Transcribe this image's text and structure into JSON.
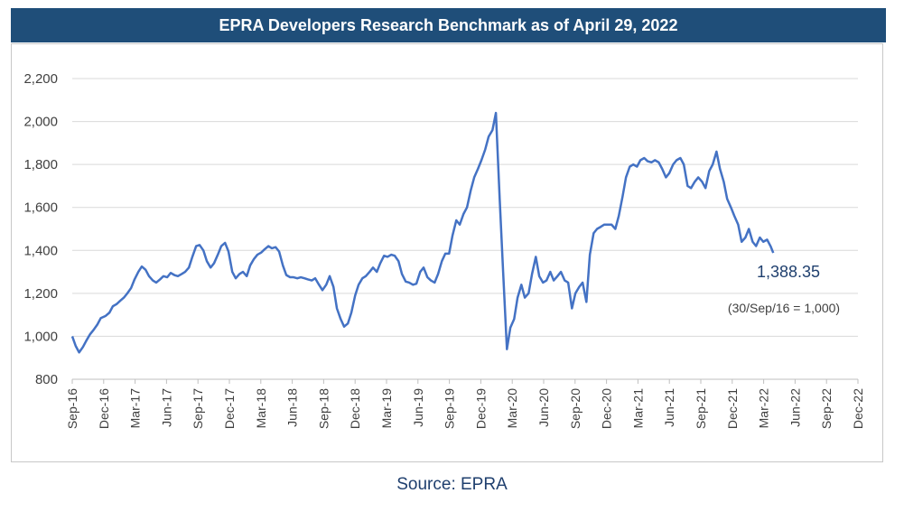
{
  "header": {
    "title": "EPRA Developers Research Benchmark as of April 29, 2022"
  },
  "footer": {
    "source": "Source: EPRA"
  },
  "colors": {
    "banner": "#1f4e79",
    "line": "#4472c4",
    "last_value_label": "#1f3f6e"
  },
  "chart_data": {
    "type": "line",
    "title": "EPRA Developers Research Benchmark as of April 29, 2022",
    "xlabel": "",
    "ylabel": "",
    "ylim": [
      800,
      2200
    ],
    "yticks": [
      800,
      1000,
      1200,
      1400,
      1600,
      1800,
      2000,
      2200
    ],
    "ytick_labels": [
      "800",
      "1,000",
      "1,200",
      "1,400",
      "1,600",
      "1,800",
      "2,000",
      "2,200"
    ],
    "xtick_labels": [
      "Sep-16",
      "Dec-16",
      "Mar-17",
      "Jun-17",
      "Sep-17",
      "Dec-17",
      "Mar-18",
      "Jun-18",
      "Sep-18",
      "Dec-18",
      "Mar-19",
      "Jun-19",
      "Sep-19",
      "Dec-19",
      "Mar-20",
      "Jun-20",
      "Sep-20",
      "Dec-20",
      "Mar-21",
      "Jun-21",
      "Sep-21",
      "Dec-21",
      "Mar-22",
      "Jun-22",
      "Sep-22",
      "Dec-22"
    ],
    "grid": {
      "horizontal": true,
      "vertical": false
    },
    "legend": "none",
    "annotations": {
      "last_value": "1,388.35",
      "base_note": "(30/Sep/16 = 1,000)"
    },
    "series": [
      {
        "values": [
          [
            "2016-09-30",
            1000
          ],
          [
            "2016-10-10",
            955
          ],
          [
            "2016-10-20",
            925
          ],
          [
            "2016-10-31",
            950
          ],
          [
            "2016-11-10",
            980
          ],
          [
            "2016-11-21",
            1010
          ],
          [
            "2016-12-01",
            1030
          ],
          [
            "2016-12-12",
            1055
          ],
          [
            "2016-12-22",
            1085
          ],
          [
            "2017-01-05",
            1095
          ],
          [
            "2017-01-16",
            1110
          ],
          [
            "2017-01-26",
            1140
          ],
          [
            "2017-02-06",
            1150
          ],
          [
            "2017-02-16",
            1165
          ],
          [
            "2017-02-27",
            1180
          ],
          [
            "2017-03-09",
            1200
          ],
          [
            "2017-03-20",
            1225
          ],
          [
            "2017-03-30",
            1265
          ],
          [
            "2017-04-10",
            1300
          ],
          [
            "2017-04-20",
            1325
          ],
          [
            "2017-05-01",
            1310
          ],
          [
            "2017-05-11",
            1280
          ],
          [
            "2017-05-22",
            1260
          ],
          [
            "2017-06-01",
            1250
          ],
          [
            "2017-06-12",
            1265
          ],
          [
            "2017-06-22",
            1280
          ],
          [
            "2017-07-03",
            1275
          ],
          [
            "2017-07-13",
            1295
          ],
          [
            "2017-07-24",
            1285
          ],
          [
            "2017-08-03",
            1280
          ],
          [
            "2017-08-14",
            1290
          ],
          [
            "2017-08-24",
            1300
          ],
          [
            "2017-09-04",
            1320
          ],
          [
            "2017-09-14",
            1370
          ],
          [
            "2017-09-25",
            1420
          ],
          [
            "2017-10-05",
            1425
          ],
          [
            "2017-10-16",
            1400
          ],
          [
            "2017-10-26",
            1350
          ],
          [
            "2017-11-06",
            1320
          ],
          [
            "2017-11-16",
            1340
          ],
          [
            "2017-11-27",
            1380
          ],
          [
            "2017-12-07",
            1420
          ],
          [
            "2017-12-18",
            1435
          ],
          [
            "2017-12-28",
            1395
          ],
          [
            "2018-01-08",
            1300
          ],
          [
            "2018-01-18",
            1270
          ],
          [
            "2018-01-29",
            1290
          ],
          [
            "2018-02-08",
            1300
          ],
          [
            "2018-02-19",
            1280
          ],
          [
            "2018-03-01",
            1330
          ],
          [
            "2018-03-12",
            1360
          ],
          [
            "2018-03-22",
            1380
          ],
          [
            "2018-04-02",
            1390
          ],
          [
            "2018-04-12",
            1405
          ],
          [
            "2018-04-23",
            1420
          ],
          [
            "2018-05-03",
            1410
          ],
          [
            "2018-05-14",
            1415
          ],
          [
            "2018-05-24",
            1395
          ],
          [
            "2018-06-04",
            1330
          ],
          [
            "2018-06-14",
            1285
          ],
          [
            "2018-06-25",
            1275
          ],
          [
            "2018-07-05",
            1275
          ],
          [
            "2018-07-16",
            1270
          ],
          [
            "2018-07-26",
            1275
          ],
          [
            "2018-08-06",
            1270
          ],
          [
            "2018-08-16",
            1265
          ],
          [
            "2018-08-27",
            1260
          ],
          [
            "2018-09-06",
            1270
          ],
          [
            "2018-09-17",
            1240
          ],
          [
            "2018-09-27",
            1215
          ],
          [
            "2018-10-08",
            1240
          ],
          [
            "2018-10-18",
            1280
          ],
          [
            "2018-10-29",
            1230
          ],
          [
            "2018-11-08",
            1130
          ],
          [
            "2018-11-19",
            1080
          ],
          [
            "2018-11-29",
            1045
          ],
          [
            "2018-12-10",
            1060
          ],
          [
            "2018-12-20",
            1110
          ],
          [
            "2018-12-31",
            1190
          ],
          [
            "2019-01-10",
            1240
          ],
          [
            "2019-01-21",
            1270
          ],
          [
            "2019-01-31",
            1280
          ],
          [
            "2019-02-11",
            1300
          ],
          [
            "2019-02-21",
            1320
          ],
          [
            "2019-03-04",
            1300
          ],
          [
            "2019-03-14",
            1340
          ],
          [
            "2019-03-25",
            1375
          ],
          [
            "2019-04-04",
            1370
          ],
          [
            "2019-04-15",
            1380
          ],
          [
            "2019-04-25",
            1375
          ],
          [
            "2019-05-06",
            1350
          ],
          [
            "2019-05-16",
            1290
          ],
          [
            "2019-05-27",
            1255
          ],
          [
            "2019-06-06",
            1250
          ],
          [
            "2019-06-17",
            1240
          ],
          [
            "2019-06-27",
            1245
          ],
          [
            "2019-07-08",
            1300
          ],
          [
            "2019-07-18",
            1320
          ],
          [
            "2019-07-29",
            1275
          ],
          [
            "2019-08-08",
            1260
          ],
          [
            "2019-08-19",
            1250
          ],
          [
            "2019-08-29",
            1290
          ],
          [
            "2019-09-09",
            1350
          ],
          [
            "2019-09-19",
            1385
          ],
          [
            "2019-09-30",
            1385
          ],
          [
            "2019-10-10",
            1470
          ],
          [
            "2019-10-21",
            1540
          ],
          [
            "2019-10-31",
            1520
          ],
          [
            "2019-11-11",
            1570
          ],
          [
            "2019-11-21",
            1600
          ],
          [
            "2019-12-02",
            1680
          ],
          [
            "2019-12-12",
            1740
          ],
          [
            "2019-12-23",
            1780
          ],
          [
            "2020-01-02",
            1820
          ],
          [
            "2020-01-13",
            1870
          ],
          [
            "2020-01-23",
            1930
          ],
          [
            "2020-02-03",
            1960
          ],
          [
            "2020-02-13",
            2040
          ],
          [
            "2020-02-24",
            1640
          ],
          [
            "2020-03-05",
            1300
          ],
          [
            "2020-03-16",
            940
          ],
          [
            "2020-03-26",
            1040
          ],
          [
            "2020-04-06",
            1080
          ],
          [
            "2020-04-16",
            1180
          ],
          [
            "2020-04-27",
            1240
          ],
          [
            "2020-05-07",
            1180
          ],
          [
            "2020-05-18",
            1200
          ],
          [
            "2020-05-28",
            1290
          ],
          [
            "2020-06-08",
            1370
          ],
          [
            "2020-06-18",
            1280
          ],
          [
            "2020-06-29",
            1250
          ],
          [
            "2020-07-09",
            1260
          ],
          [
            "2020-07-20",
            1300
          ],
          [
            "2020-07-30",
            1260
          ],
          [
            "2020-08-10",
            1280
          ],
          [
            "2020-08-20",
            1300
          ],
          [
            "2020-08-31",
            1260
          ],
          [
            "2020-09-10",
            1250
          ],
          [
            "2020-09-21",
            1130
          ],
          [
            "2020-10-01",
            1200
          ],
          [
            "2020-10-12",
            1230
          ],
          [
            "2020-10-22",
            1250
          ],
          [
            "2020-11-02",
            1160
          ],
          [
            "2020-11-12",
            1380
          ],
          [
            "2020-11-23",
            1480
          ],
          [
            "2020-12-03",
            1500
          ],
          [
            "2020-12-14",
            1510
          ],
          [
            "2020-12-24",
            1520
          ],
          [
            "2021-01-04",
            1520
          ],
          [
            "2021-01-14",
            1520
          ],
          [
            "2021-01-25",
            1500
          ],
          [
            "2021-02-04",
            1560
          ],
          [
            "2021-02-15",
            1650
          ],
          [
            "2021-02-25",
            1740
          ],
          [
            "2021-03-08",
            1790
          ],
          [
            "2021-03-18",
            1800
          ],
          [
            "2021-03-29",
            1790
          ],
          [
            "2021-04-08",
            1820
          ],
          [
            "2021-04-19",
            1830
          ],
          [
            "2021-04-29",
            1815
          ],
          [
            "2021-05-10",
            1810
          ],
          [
            "2021-05-20",
            1820
          ],
          [
            "2021-05-31",
            1810
          ],
          [
            "2021-06-10",
            1780
          ],
          [
            "2021-06-21",
            1740
          ],
          [
            "2021-07-01",
            1760
          ],
          [
            "2021-07-12",
            1800
          ],
          [
            "2021-07-22",
            1820
          ],
          [
            "2021-08-02",
            1830
          ],
          [
            "2021-08-12",
            1800
          ],
          [
            "2021-08-23",
            1700
          ],
          [
            "2021-09-02",
            1690
          ],
          [
            "2021-09-13",
            1720
          ],
          [
            "2021-09-23",
            1740
          ],
          [
            "2021-10-04",
            1720
          ],
          [
            "2021-10-14",
            1690
          ],
          [
            "2021-10-25",
            1770
          ],
          [
            "2021-11-04",
            1800
          ],
          [
            "2021-11-15",
            1860
          ],
          [
            "2021-11-25",
            1780
          ],
          [
            "2021-12-06",
            1720
          ],
          [
            "2021-12-16",
            1640
          ],
          [
            "2021-12-27",
            1600
          ],
          [
            "2022-01-06",
            1560
          ],
          [
            "2022-01-17",
            1520
          ],
          [
            "2022-01-27",
            1440
          ],
          [
            "2022-02-07",
            1460
          ],
          [
            "2022-02-17",
            1500
          ],
          [
            "2022-02-28",
            1440
          ],
          [
            "2022-03-10",
            1420
          ],
          [
            "2022-03-21",
            1460
          ],
          [
            "2022-03-31",
            1440
          ],
          [
            "2022-04-11",
            1450
          ],
          [
            "2022-04-21",
            1420
          ],
          [
            "2022-04-29",
            1388.35
          ]
        ]
      }
    ]
  }
}
